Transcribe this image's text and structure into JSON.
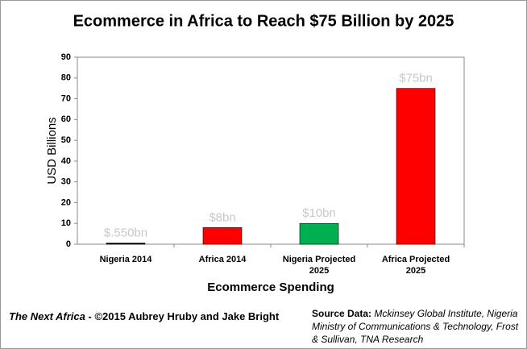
{
  "chart_data": {
    "type": "bar",
    "title": "Ecommerce in Africa to Reach $75 Billion by 2025",
    "categories": [
      "Nigeria 2014",
      "Africa 2014",
      "Nigeria Projected 2025",
      "Africa Projected 2025"
    ],
    "values": [
      0.55,
      8,
      10,
      75
    ],
    "value_labels": [
      "$.550bn",
      "$8bn",
      "$10bn",
      "$75bn"
    ],
    "colors": [
      "#000000",
      "#ff0000",
      "#00b050",
      "#ff0000"
    ],
    "ylim": [
      0,
      90
    ],
    "yticks": [
      0,
      10,
      20,
      30,
      40,
      50,
      60,
      70,
      80,
      90
    ],
    "ylabel": "USD Billions",
    "xlabel": "Ecommerce Spending",
    "grid": false
  },
  "footer": {
    "credit_title": "The Next Africa",
    "credit_text": "- ©2015 Aubrey Hruby and Jake Bright",
    "source_label": "Source Data:",
    "source_text": "Mckinsey Global Institute, Nigeria Ministry of Communications & Technology, Frost & Sullivan, TNA Research"
  }
}
